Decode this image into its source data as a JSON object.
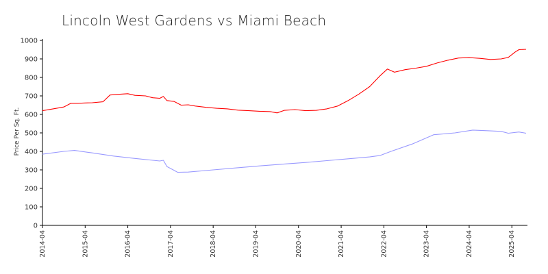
{
  "chart_data": {
    "type": "line",
    "title": "Lincoln West Gardens vs Miami Beach",
    "xlabel": "",
    "ylabel": "Price Per Sq. Ft.",
    "ylim": [
      0,
      1000
    ],
    "xlim": [
      "2014-04",
      "2025-08"
    ],
    "yticks": [
      "0",
      "100",
      "200",
      "300",
      "400",
      "500",
      "600",
      "700",
      "800",
      "900",
      "1000"
    ],
    "xticks": [
      "2014-04",
      "2015-04",
      "2016-04",
      "2017-04",
      "2018-04",
      "2019-04",
      "2020-04",
      "2021-04",
      "2022-04",
      "2023-04",
      "2024-04",
      "2025-04"
    ],
    "grid": false,
    "legend": "none",
    "series": [
      {
        "color": "#ff0000",
        "points": [
          [
            "2014-04",
            620
          ],
          [
            "2014-07",
            630
          ],
          [
            "2014-10",
            640
          ],
          [
            "2014-12",
            660
          ],
          [
            "2015-02",
            660
          ],
          [
            "2015-04",
            662
          ],
          [
            "2015-06",
            663
          ],
          [
            "2015-09",
            668
          ],
          [
            "2015-11",
            705
          ],
          [
            "2016-01",
            708
          ],
          [
            "2016-04",
            712
          ],
          [
            "2016-06",
            703
          ],
          [
            "2016-09",
            700
          ],
          [
            "2016-11",
            690
          ],
          [
            "2017-01",
            687
          ],
          [
            "2017-02",
            697
          ],
          [
            "2017-03",
            675
          ],
          [
            "2017-05",
            670
          ],
          [
            "2017-07",
            650
          ],
          [
            "2017-09",
            652
          ],
          [
            "2017-11",
            645
          ],
          [
            "2018-02",
            638
          ],
          [
            "2018-05",
            633
          ],
          [
            "2018-08",
            630
          ],
          [
            "2018-11",
            623
          ],
          [
            "2019-02",
            620
          ],
          [
            "2019-05",
            617
          ],
          [
            "2019-08",
            615
          ],
          [
            "2019-10",
            608
          ],
          [
            "2019-12",
            622
          ],
          [
            "2020-03",
            626
          ],
          [
            "2020-06",
            620
          ],
          [
            "2020-09",
            622
          ],
          [
            "2020-12",
            630
          ],
          [
            "2021-03",
            645
          ],
          [
            "2021-06",
            675
          ],
          [
            "2021-09",
            710
          ],
          [
            "2021-12",
            750
          ],
          [
            "2022-03",
            810
          ],
          [
            "2022-05",
            845
          ],
          [
            "2022-07",
            828
          ],
          [
            "2022-10",
            842
          ],
          [
            "2023-01",
            850
          ],
          [
            "2023-04",
            860
          ],
          [
            "2023-07",
            878
          ],
          [
            "2023-10",
            893
          ],
          [
            "2024-01",
            905
          ],
          [
            "2024-04",
            907
          ],
          [
            "2024-07",
            903
          ],
          [
            "2024-10",
            897
          ],
          [
            "2025-01",
            900
          ],
          [
            "2025-03",
            908
          ],
          [
            "2025-05",
            938
          ],
          [
            "2025-06",
            950
          ],
          [
            "2025-08",
            952
          ]
        ]
      },
      {
        "color": "#9999ff",
        "points": [
          [
            "2014-04",
            385
          ],
          [
            "2014-10",
            400
          ],
          [
            "2015-01",
            405
          ],
          [
            "2015-06",
            392
          ],
          [
            "2015-12",
            375
          ],
          [
            "2016-06",
            362
          ],
          [
            "2016-12",
            350
          ],
          [
            "2017-01",
            348
          ],
          [
            "2017-02",
            352
          ],
          [
            "2017-03",
            318
          ],
          [
            "2017-06",
            287
          ],
          [
            "2017-09",
            288
          ],
          [
            "2018-04",
            300
          ],
          [
            "2018-10",
            310
          ],
          [
            "2019-06",
            323
          ],
          [
            "2020-01",
            333
          ],
          [
            "2020-06",
            340
          ],
          [
            "2020-12",
            350
          ],
          [
            "2021-06",
            360
          ],
          [
            "2021-12",
            370
          ],
          [
            "2022-03",
            378
          ],
          [
            "2022-06",
            400
          ],
          [
            "2022-12",
            440
          ],
          [
            "2023-06",
            490
          ],
          [
            "2023-12",
            500
          ],
          [
            "2024-05",
            515
          ],
          [
            "2024-09",
            512
          ],
          [
            "2025-01",
            508
          ],
          [
            "2025-03",
            498
          ],
          [
            "2025-06",
            505
          ],
          [
            "2025-08",
            498
          ]
        ]
      }
    ]
  }
}
